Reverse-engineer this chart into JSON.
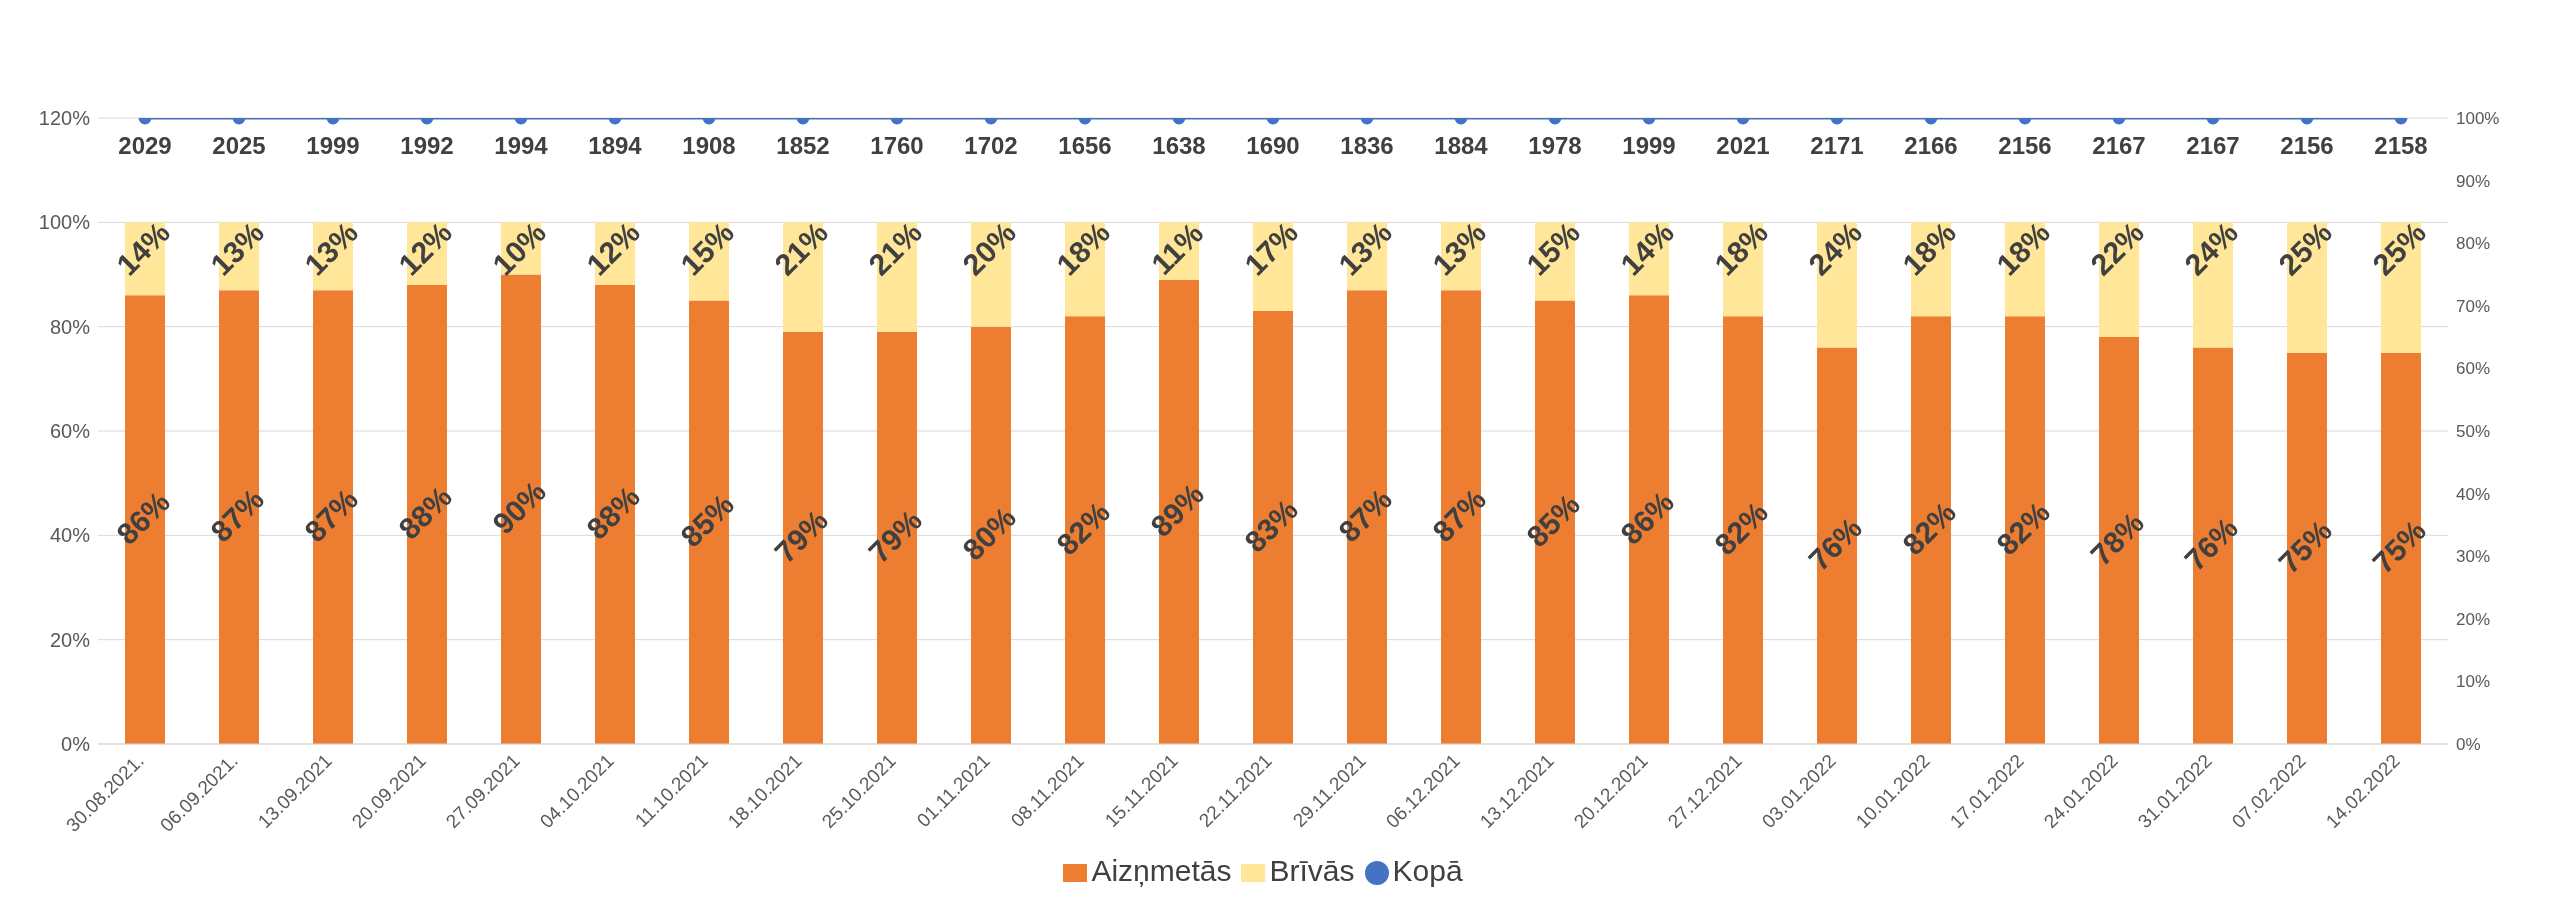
{
  "chart_data": {
    "type": "bar",
    "stacked": true,
    "categories": [
      "30.08.2021.",
      "06.09.2021.",
      "13.09.2021",
      "20.09.2021",
      "27.09.2021",
      "04.10.2021",
      "11.10.2021",
      "18.10.2021",
      "25.10.2021",
      "01.11.2021",
      "08.11.2021",
      "15.11.2021",
      "22.11.2021",
      "29.11.2021",
      "06.12.2021",
      "13.12.2021",
      "20.12.2021",
      "27.12.2021",
      "03.01.2022",
      "10.01.2022",
      "17.01.2022",
      "24.01.2022",
      "31.01.2022",
      "07.02.2022",
      "14.02.2022"
    ],
    "series": [
      {
        "name": "Aizņmetās",
        "color": "#ed7d31",
        "values": [
          86,
          87,
          87,
          88,
          90,
          88,
          85,
          79,
          79,
          80,
          82,
          89,
          83,
          87,
          87,
          85,
          86,
          82,
          76,
          82,
          82,
          78,
          76,
          75,
          75
        ],
        "value_labels": [
          "86%",
          "87%",
          "87%",
          "88%",
          "90%",
          "88%",
          "85%",
          "79%",
          "79%",
          "80%",
          "82%",
          "89%",
          "83%",
          "87%",
          "87%",
          "85%",
          "86%",
          "82%",
          "76%",
          "82%",
          "82%",
          "78%",
          "76%",
          "75%",
          "75%"
        ]
      },
      {
        "name": "Brīvās",
        "color": "#ffe699",
        "values": [
          14,
          13,
          13,
          12,
          10,
          12,
          15,
          21,
          21,
          20,
          18,
          11,
          17,
          13,
          13,
          15,
          14,
          18,
          24,
          18,
          18,
          22,
          24,
          25,
          25
        ],
        "value_labels": [
          "14%",
          "13%",
          "13%",
          "12%",
          "10%",
          "12%",
          "15%",
          "21%",
          "21%",
          "20%",
          "18%",
          "11%",
          "17%",
          "13%",
          "13%",
          "15%",
          "14%",
          "18%",
          "24%",
          "18%",
          "18%",
          "22%",
          "24%",
          "25%",
          "25%"
        ]
      },
      {
        "name": "Kopā",
        "type": "line",
        "axis": "y2",
        "color": "#4472c4",
        "marker": "circle",
        "values": [
          100,
          100,
          100,
          100,
          100,
          100,
          100,
          100,
          100,
          100,
          100,
          100,
          100,
          100,
          100,
          100,
          100,
          100,
          100,
          100,
          100,
          100,
          100,
          100,
          100
        ]
      }
    ],
    "annotations": [
      {
        "text": "2029",
        "x": "30.08.2021.",
        "y": 100
      },
      {
        "text": "2025",
        "x": "06.09.2021.",
        "y": 100
      },
      {
        "text": "1999",
        "x": "13.09.2021",
        "y": 100
      },
      {
        "text": "1992",
        "x": "20.09.2021",
        "y": 100
      },
      {
        "text": "1994",
        "x": "27.09.2021",
        "y": 100
      },
      {
        "text": "1894",
        "x": "04.10.2021",
        "y": 100
      },
      {
        "text": "1908",
        "x": "11.10.2021",
        "y": 100
      },
      {
        "text": "1852",
        "x": "18.10.2021",
        "y": 100
      },
      {
        "text": "1760",
        "x": "25.10.2021",
        "y": 100
      },
      {
        "text": "1702",
        "x": "01.11.2021",
        "y": 100
      },
      {
        "text": "1656",
        "x": "08.11.2021",
        "y": 100
      },
      {
        "text": "1638",
        "x": "15.11.2021",
        "y": 100
      },
      {
        "text": "1690",
        "x": "22.11.2021",
        "y": 100
      },
      {
        "text": "1836",
        "x": "29.11.2021",
        "y": 100
      },
      {
        "text": "1884",
        "x": "06.12.2021",
        "y": 100
      },
      {
        "text": "1978",
        "x": "13.12.2021",
        "y": 100
      },
      {
        "text": "1999",
        "x": "20.12.2021",
        "y": 100
      },
      {
        "text": "2021",
        "x": "27.12.2021",
        "y": 100
      },
      {
        "text": "2171",
        "x": "03.01.2022",
        "y": 100
      },
      {
        "text": "2166",
        "x": "10.01.2022",
        "y": 100
      },
      {
        "text": "2156",
        "x": "17.01.2022",
        "y": 100
      },
      {
        "text": "2167",
        "x": "24.01.2022",
        "y": 100
      },
      {
        "text": "2167",
        "x": "31.01.2022",
        "y": 100
      },
      {
        "text": "2156",
        "x": "07.02.2022",
        "y": 100
      },
      {
        "text": "2158",
        "x": "14.02.2022",
        "y": 100
      }
    ],
    "ylim": [
      0,
      120
    ],
    "yticks": [
      {
        "value": 0,
        "label": "0%"
      },
      {
        "value": 20,
        "label": "20%"
      },
      {
        "value": 40,
        "label": "40%"
      },
      {
        "value": 60,
        "label": "60%"
      },
      {
        "value": 80,
        "label": "80%"
      },
      {
        "value": 100,
        "label": "100%"
      },
      {
        "value": 120,
        "label": "120%"
      }
    ],
    "y2lim": [
      0,
      100
    ],
    "y2ticks": [
      {
        "value": 0,
        "label": "0%"
      },
      {
        "value": 10,
        "label": "10%"
      },
      {
        "value": 20,
        "label": "20%"
      },
      {
        "value": 30,
        "label": "30%"
      },
      {
        "value": 40,
        "label": "40%"
      },
      {
        "value": 50,
        "label": "50%"
      },
      {
        "value": 60,
        "label": "60%"
      },
      {
        "value": 70,
        "label": "70%"
      },
      {
        "value": 80,
        "label": "80%"
      },
      {
        "value": 90,
        "label": "90%"
      },
      {
        "value": 100,
        "label": "100%"
      }
    ],
    "grid": "y",
    "legend": "bottom"
  }
}
